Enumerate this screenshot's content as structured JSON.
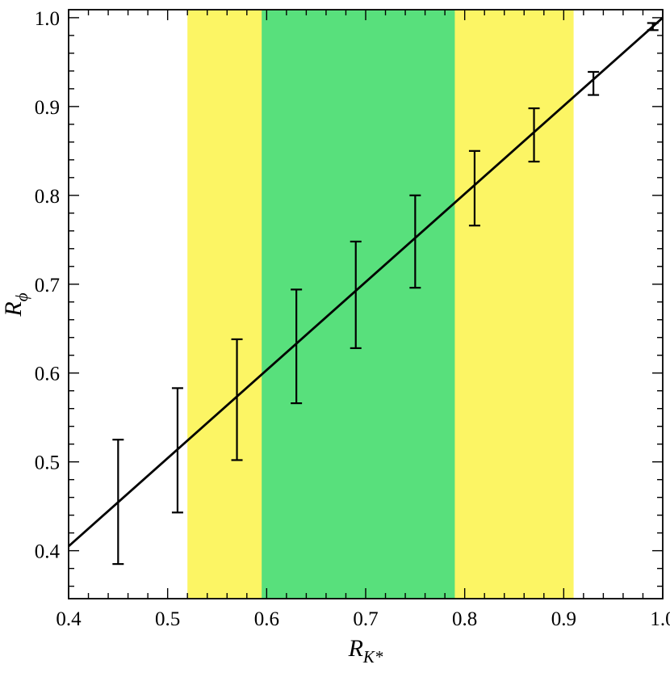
{
  "chart_data": {
    "type": "line",
    "title": "",
    "xlabel": "R_K*",
    "ylabel": "R_phi",
    "x_label": {
      "main": "R",
      "sub": "K*"
    },
    "y_label": {
      "main": "R",
      "sub": "ϕ"
    },
    "xlim": [
      0.4,
      1.0
    ],
    "ylim": [
      0.346,
      1.009
    ],
    "x_ticks": [
      {
        "v": 0.4,
        "label": "0.4"
      },
      {
        "v": 0.5,
        "label": "0.5"
      },
      {
        "v": 0.6,
        "label": "0.6"
      },
      {
        "v": 0.7,
        "label": "0.7"
      },
      {
        "v": 0.8,
        "label": "0.8"
      },
      {
        "v": 0.9,
        "label": "0.9"
      },
      {
        "v": 1.0,
        "label": "1.0"
      }
    ],
    "y_ticks": [
      {
        "v": 0.4,
        "label": "0.4"
      },
      {
        "v": 0.5,
        "label": "0.5"
      },
      {
        "v": 0.6,
        "label": "0.6"
      },
      {
        "v": 0.7,
        "label": "0.7"
      },
      {
        "v": 0.8,
        "label": "0.8"
      },
      {
        "v": 0.9,
        "label": "0.9"
      },
      {
        "v": 1.0,
        "label": "1.0"
      }
    ],
    "minor_tick_step": 0.02,
    "grid": false,
    "legend": null,
    "bands": [
      {
        "x0": 0.52,
        "x1": 0.91,
        "color": "#FCF564"
      },
      {
        "x0": 0.595,
        "x1": 0.79,
        "color": "#58E07C"
      }
    ],
    "line": {
      "x": [
        0.4,
        1.0
      ],
      "y": [
        0.405,
        1.0
      ],
      "color": "#000000"
    },
    "points": [
      {
        "x": 0.45,
        "y": 0.455,
        "err": 0.07
      },
      {
        "x": 0.51,
        "y": 0.513,
        "err": 0.07
      },
      {
        "x": 0.57,
        "y": 0.57,
        "err": 0.068
      },
      {
        "x": 0.63,
        "y": 0.63,
        "err": 0.064
      },
      {
        "x": 0.69,
        "y": 0.688,
        "err": 0.06
      },
      {
        "x": 0.75,
        "y": 0.748,
        "err": 0.052
      },
      {
        "x": 0.81,
        "y": 0.808,
        "err": 0.042
      },
      {
        "x": 0.87,
        "y": 0.868,
        "err": 0.03
      },
      {
        "x": 0.93,
        "y": 0.926,
        "err": 0.013
      },
      {
        "x": 0.99,
        "y": 0.99,
        "err": 0.004
      }
    ],
    "colors": {
      "axis": "#000000",
      "background": "#FFFFFF"
    }
  }
}
